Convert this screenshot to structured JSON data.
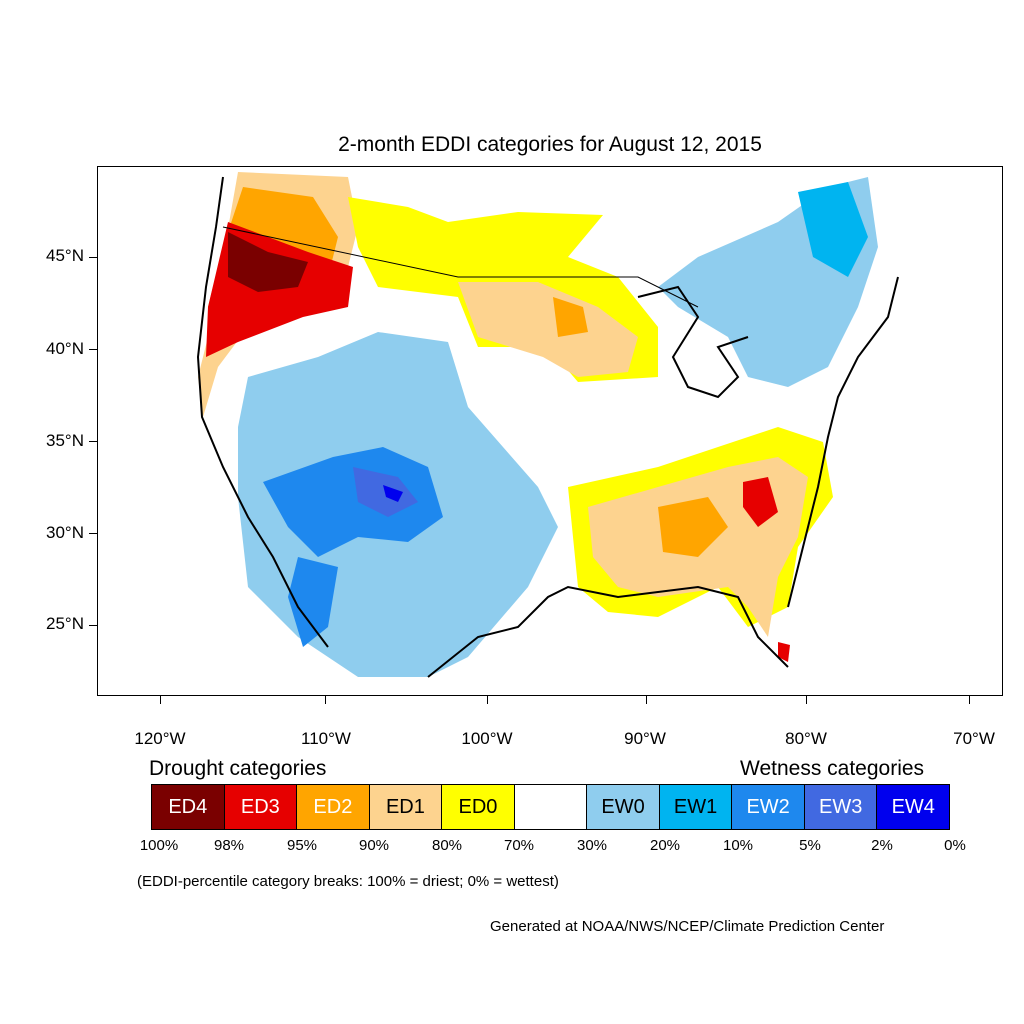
{
  "title": "2-month EDDI categories for August 12, 2015",
  "lat_labels": [
    "45°N",
    "40°N",
    "35°N",
    "30°N",
    "25°N"
  ],
  "lon_labels": [
    "120°W",
    "110°W",
    "100°W",
    "90°W",
    "80°W",
    "70°W"
  ],
  "legend": {
    "drought_title": "Drought categories",
    "wetness_title": "Wetness categories",
    "categories": [
      {
        "label": "ED4",
        "color": "#7a0000",
        "text_color": "#ffffff"
      },
      {
        "label": "ED3",
        "color": "#e60000",
        "text_color": "#ffffff"
      },
      {
        "label": "ED2",
        "color": "#ffa500",
        "text_color": "#ffffff"
      },
      {
        "label": "ED1",
        "color": "#fdd38f",
        "text_color": "#000000"
      },
      {
        "label": "ED0",
        "color": "#ffff00",
        "text_color": "#000000"
      },
      {
        "label": "",
        "color": "#ffffff",
        "text_color": "#000000"
      },
      {
        "label": "EW0",
        "color": "#8fcdee",
        "text_color": "#000000"
      },
      {
        "label": "EW1",
        "color": "#00b4f0",
        "text_color": "#000000"
      },
      {
        "label": "EW2",
        "color": "#1e88ee",
        "text_color": "#ffffff"
      },
      {
        "label": "EW3",
        "color": "#4169e1",
        "text_color": "#ffffff"
      },
      {
        "label": "EW4",
        "color": "#0000ee",
        "text_color": "#ffffff"
      }
    ],
    "breaks": [
      "100%",
      "98%",
      "95%",
      "90%",
      "80%",
      "70%",
      "30%",
      "20%",
      "10%",
      "5%",
      "2%",
      "0%"
    ]
  },
  "breaks_note": "(EDDI-percentile category breaks: 100% = driest; 0% = wettest)",
  "credit": "Generated at NOAA/NWS/NCEP/Climate Prediction Center"
}
